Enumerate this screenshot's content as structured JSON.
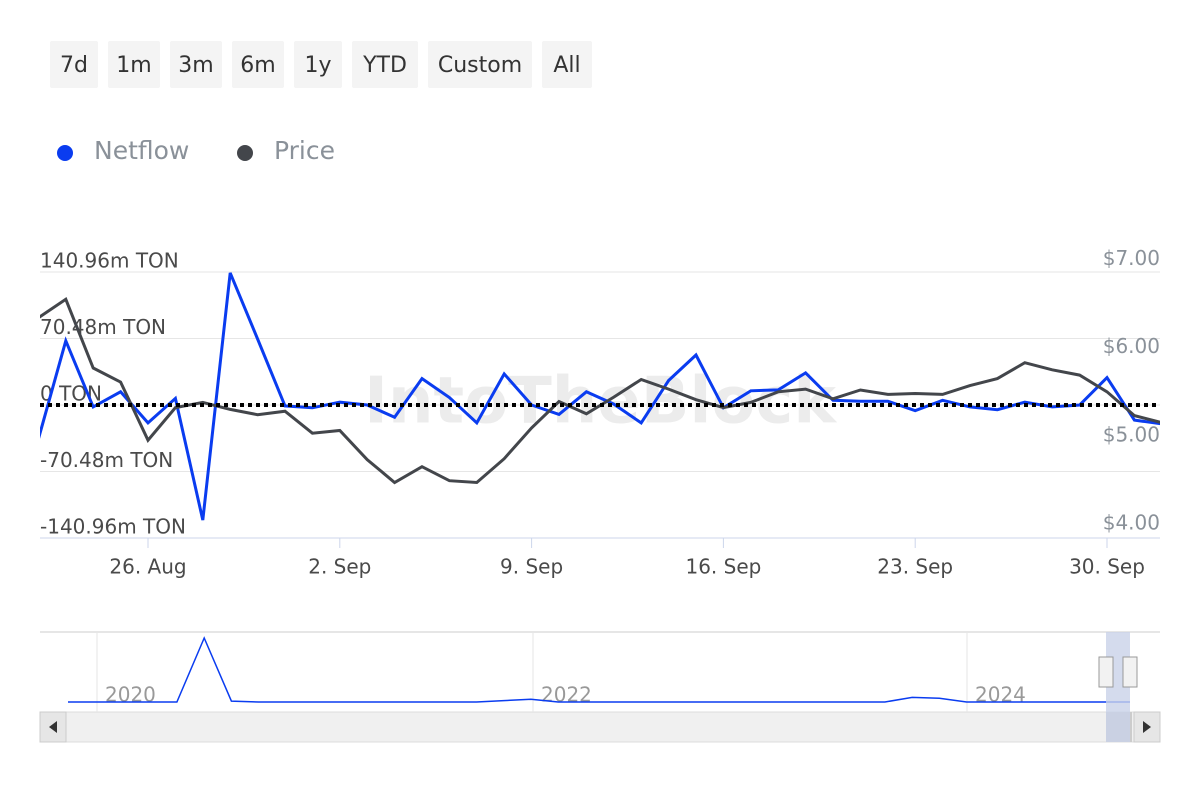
{
  "range_buttons": [
    "7d",
    "1m",
    "3m",
    "6m",
    "1y",
    "YTD",
    "Custom",
    "All"
  ],
  "chart_data": {
    "type": "line",
    "x": [
      "22. Aug",
      "23. Aug",
      "24. Aug",
      "25. Aug",
      "26. Aug",
      "27. Aug",
      "28. Aug",
      "29. Aug",
      "30. Aug",
      "31. Aug",
      "1. Sep",
      "2. Sep",
      "3. Sep",
      "4. Sep",
      "5. Sep",
      "6. Sep",
      "7. Sep",
      "8. Sep",
      "9. Sep",
      "10. Sep",
      "11. Sep",
      "12. Sep",
      "13. Sep",
      "14. Sep",
      "15. Sep",
      "16. Sep",
      "17. Sep",
      "18. Sep",
      "19. Sep",
      "20. Sep",
      "21. Sep",
      "22. Sep",
      "23. Sep",
      "24. Sep",
      "25. Sep",
      "26. Sep",
      "27. Sep",
      "28. Sep",
      "29. Sep",
      "30. Sep",
      "1. Oct",
      "2. Oct"
    ],
    "xticks": [
      "26. Aug",
      "2. Sep",
      "9. Sep",
      "16. Sep",
      "23. Sep",
      "30. Sep"
    ],
    "series": [
      {
        "name": "Netflow",
        "color": "#0a3cf0",
        "axis": "y",
        "values": [
          -36,
          68,
          -2,
          14,
          -19,
          7,
          -122,
          140,
          70,
          -1,
          -3,
          3,
          0,
          -13,
          28,
          8,
          -19,
          33,
          0,
          -10,
          14,
          1,
          -19,
          26,
          53,
          -3,
          15,
          16,
          34,
          5,
          4,
          4,
          -6,
          5,
          -2,
          -5,
          3,
          -2,
          0,
          29,
          -16,
          -20
        ]
      },
      {
        "name": "Price",
        "color": "#43464b",
        "axis": "y2",
        "values": [
          6.34,
          6.55,
          5.77,
          5.61,
          4.95,
          5.32,
          5.38,
          5.3,
          5.24,
          5.28,
          5.03,
          5.06,
          4.73,
          4.47,
          4.65,
          4.49,
          4.47,
          4.74,
          5.09,
          5.39,
          5.25,
          5.44,
          5.64,
          5.53,
          5.41,
          5.32,
          5.38,
          5.5,
          5.53,
          5.42,
          5.52,
          5.47,
          5.48,
          5.47,
          5.57,
          5.65,
          5.83,
          5.75,
          5.69,
          5.5,
          5.23,
          5.15
        ]
      }
    ],
    "ylim": [
      -140.96,
      140.96
    ],
    "yticks": [
      {
        "value": 140.96,
        "label": "140.96m TON"
      },
      {
        "value": 70.48,
        "label": "70.48m TON"
      },
      {
        "value": 0,
        "label": "0 TON"
      },
      {
        "value": -70.48,
        "label": "-70.48m TON"
      },
      {
        "value": -140.96,
        "label": "-140.96m TON"
      }
    ],
    "y2lim": [
      3.84,
      6.86
    ],
    "y2ticks": [
      {
        "value": 7,
        "label": "$7.00"
      },
      {
        "value": 6,
        "label": "$6.00"
      },
      {
        "value": 5,
        "label": "$5.00"
      },
      {
        "value": 4,
        "label": "$4.00"
      }
    ],
    "grid": true,
    "zero_line": true,
    "watermark": "IntoTheBlock",
    "navigator": {
      "year_labels": [
        "2020",
        "2022",
        "2024"
      ],
      "ylim": [
        0,
        700
      ],
      "values": [
        0,
        0,
        0,
        0,
        0,
        700,
        10,
        0,
        0,
        0,
        0,
        0,
        0,
        0,
        0,
        0,
        15,
        30,
        0,
        0,
        0,
        0,
        0,
        0,
        0,
        0,
        0,
        0,
        0,
        0,
        0,
        50,
        40,
        0,
        0,
        0,
        0,
        0,
        0,
        0
      ]
    }
  }
}
